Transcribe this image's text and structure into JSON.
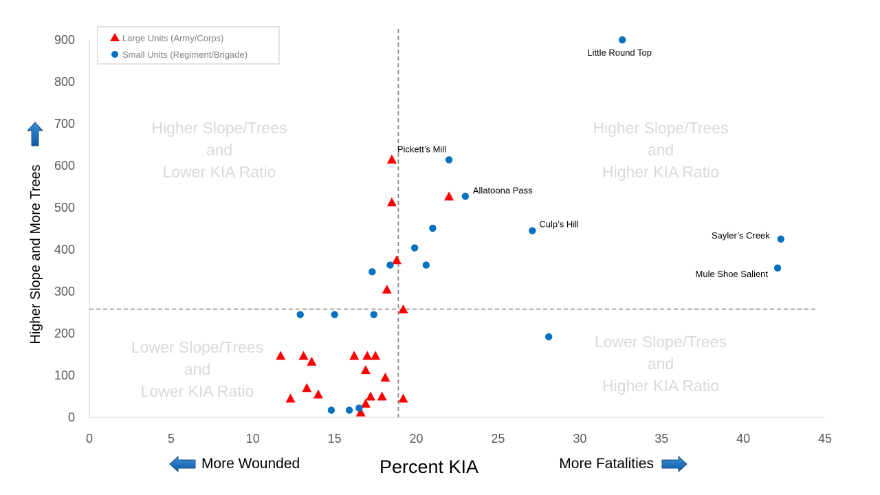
{
  "chart_data": {
    "type": "scatter",
    "xlabel": "Percent KIA",
    "ylabel": "Higher Slope and More Trees",
    "xlim": [
      0,
      45
    ],
    "ylim": [
      0,
      900
    ],
    "x_ticks": [
      0,
      5,
      10,
      15,
      20,
      25,
      30,
      35,
      40,
      45
    ],
    "y_ticks": [
      0,
      100,
      200,
      300,
      400,
      500,
      600,
      700,
      800,
      900
    ],
    "grid": false,
    "legend_position": "top-left",
    "x_direction_labels": {
      "left": "More Wounded",
      "right": "More Fatalities"
    },
    "reference_lines": {
      "x": 18.9,
      "y": 258
    },
    "quadrant_labels": [
      {
        "position": "top-left",
        "lines": [
          "Higher Slope/Trees",
          "and",
          "Lower KIA Ratio"
        ]
      },
      {
        "position": "top-right",
        "lines": [
          "Higher Slope/Trees",
          "and",
          "Higher KIA Ratio"
        ]
      },
      {
        "position": "bottom-left",
        "lines": [
          "Lower Slope/Trees",
          "and",
          "Lower KIA Ratio"
        ]
      },
      {
        "position": "bottom-right",
        "lines": [
          "Lower Slope/Trees",
          "and",
          "Higher KIA Ratio"
        ]
      }
    ],
    "series": [
      {
        "name": "Large Units (Army/Corps)",
        "marker": "triangle",
        "color": "#ff0000",
        "points": [
          {
            "x": 11.7,
            "y": 147
          },
          {
            "x": 12.3,
            "y": 45
          },
          {
            "x": 13.1,
            "y": 147
          },
          {
            "x": 13.3,
            "y": 70
          },
          {
            "x": 13.6,
            "y": 133
          },
          {
            "x": 14.0,
            "y": 55
          },
          {
            "x": 16.2,
            "y": 147
          },
          {
            "x": 16.6,
            "y": 12
          },
          {
            "x": 16.9,
            "y": 113
          },
          {
            "x": 16.9,
            "y": 33
          },
          {
            "x": 17.0,
            "y": 147
          },
          {
            "x": 17.2,
            "y": 50
          },
          {
            "x": 17.5,
            "y": 147
          },
          {
            "x": 17.9,
            "y": 50
          },
          {
            "x": 18.1,
            "y": 95
          },
          {
            "x": 18.2,
            "y": 305
          },
          {
            "x": 18.5,
            "y": 615
          },
          {
            "x": 18.5,
            "y": 513
          },
          {
            "x": 18.8,
            "y": 375
          },
          {
            "x": 19.2,
            "y": 258
          },
          {
            "x": 19.2,
            "y": 45
          },
          {
            "x": 22.0,
            "y": 527
          }
        ]
      },
      {
        "name": "Small Units (Regiment/Brigade)",
        "marker": "circle",
        "color": "#0070c0",
        "points": [
          {
            "x": 12.9,
            "y": 245,
            "label": ""
          },
          {
            "x": 14.8,
            "y": 17,
            "label": ""
          },
          {
            "x": 15.0,
            "y": 245,
            "label": ""
          },
          {
            "x": 15.9,
            "y": 17,
            "label": ""
          },
          {
            "x": 16.5,
            "y": 22,
            "label": ""
          },
          {
            "x": 17.3,
            "y": 347,
            "label": ""
          },
          {
            "x": 17.4,
            "y": 245,
            "label": ""
          },
          {
            "x": 18.4,
            "y": 363,
            "label": ""
          },
          {
            "x": 19.9,
            "y": 404,
            "label": ""
          },
          {
            "x": 20.6,
            "y": 363,
            "label": ""
          },
          {
            "x": 21.0,
            "y": 451,
            "label": ""
          },
          {
            "x": 22.0,
            "y": 614,
            "label": "Pickett’s Mill"
          },
          {
            "x": 23.0,
            "y": 527,
            "label": "Allatoona Pass"
          },
          {
            "x": 27.1,
            "y": 445,
            "label": "Culp’s Hill"
          },
          {
            "x": 28.1,
            "y": 192,
            "label": ""
          },
          {
            "x": 32.6,
            "y": 900,
            "label": "Little Round Top"
          },
          {
            "x": 42.1,
            "y": 356,
            "label": "Mule Shoe Salient"
          },
          {
            "x": 42.3,
            "y": 425,
            "label": "Sayler’s Creek"
          }
        ]
      }
    ]
  }
}
